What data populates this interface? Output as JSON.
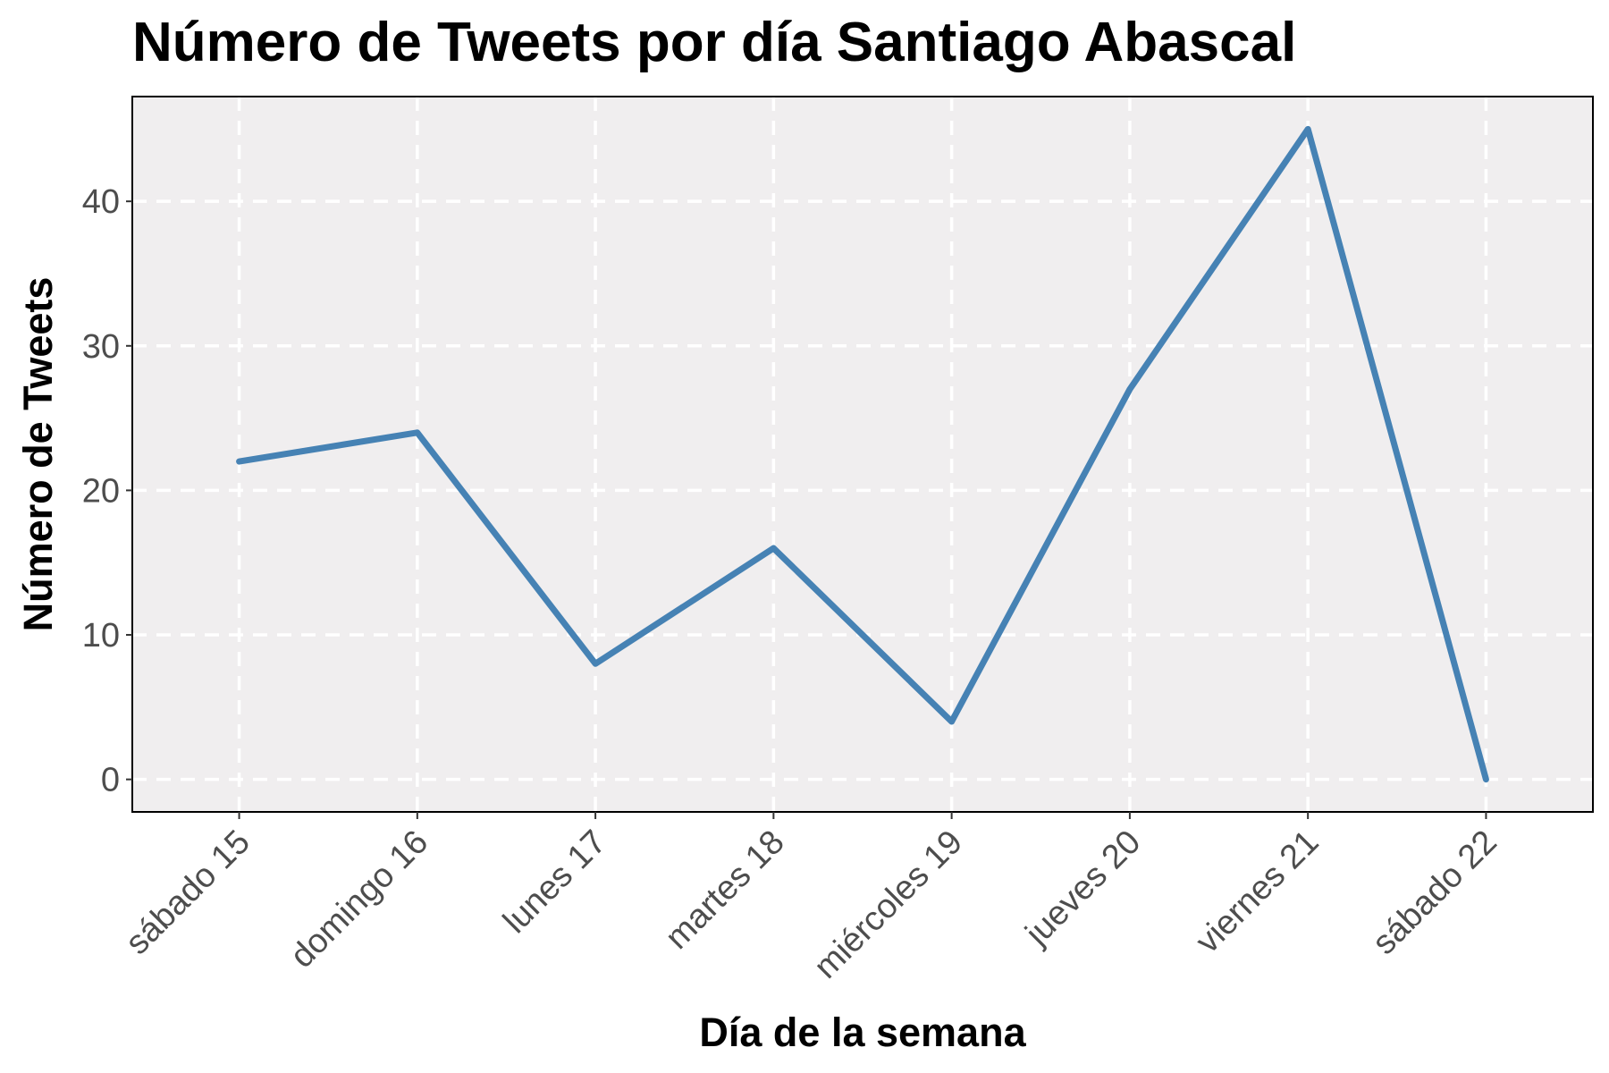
{
  "chart_data": {
    "type": "line",
    "title": "Número de Tweets por día Santiago Abascal",
    "xlabel": "Día de la semana",
    "ylabel": "Número de Tweets",
    "categories": [
      "sábado 15",
      "domingo 16",
      "lunes 17",
      "martes 18",
      "miércoles 19",
      "jueves 20",
      "viernes 21",
      "sábado 22"
    ],
    "series": [
      {
        "values": [
          22,
          24,
          8,
          16,
          4,
          27,
          45,
          0
        ]
      }
    ],
    "ylim": [
      -2.25,
      47.25
    ],
    "yticks": [
      0,
      10,
      20,
      30,
      40
    ],
    "grid": true,
    "colors": {
      "line": "#4682b4",
      "panel": "#f0eeef",
      "grid": "#ffffff",
      "border": "#000000",
      "tick_text": "#4d4d4d"
    }
  }
}
